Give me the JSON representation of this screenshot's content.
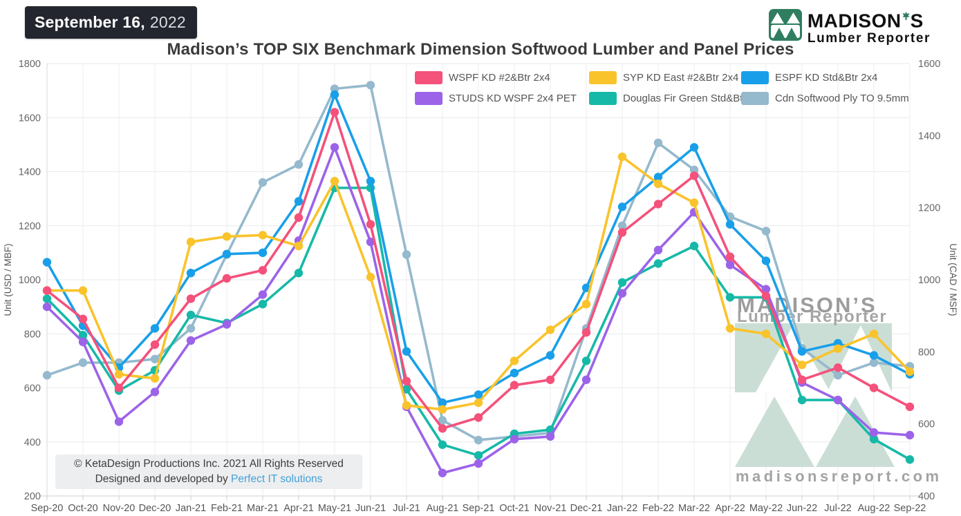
{
  "header": {
    "date_badge": {
      "date": "September 16,",
      "year": "2022"
    },
    "title": "Madison’s TOP SIX Benchmark Dimension Softwood Lumber and Panel Prices",
    "logo": {
      "name_part1": "MADISON",
      "name_part2": "S",
      "subtitle": "Lumber Reporter"
    }
  },
  "watermark": {
    "brand_line1_part1": "MADISON",
    "brand_line1_part2": "S",
    "brand_line2": "Lumber Reporter",
    "website": "madisonsreport.com"
  },
  "footer_note": {
    "line1": "© KetaDesign Productions Inc. 2021 All Rights Reserved",
    "line2_prefix": "Designed and developed by ",
    "line2_link": "Perfect IT solutions"
  },
  "chart_data": {
    "type": "line",
    "grid": true,
    "legend_position": "top-inside",
    "left_axis": {
      "title": "Unit (USD / MBF)",
      "min": 200,
      "max": 1800,
      "step": 200
    },
    "right_axis": {
      "title": "Unit (CAD / MSF)",
      "min": 400,
      "max": 1600,
      "step": 200
    },
    "categories": [
      "Sep-20",
      "Oct-20",
      "Nov-20",
      "Dec-20",
      "Jan-21",
      "Feb-21",
      "Mar-21",
      "Apr-21",
      "May-21",
      "Jun-21",
      "Jul-21",
      "Aug-21",
      "Sep-21",
      "Oct-21",
      "Nov-21",
      "Dec-21",
      "Jan-22",
      "Feb-22",
      "Mar-22",
      "Apr-22",
      "May-22",
      "Jun-22",
      "Jul-22",
      "Aug-22",
      "Sep-22"
    ],
    "series": [
      {
        "name": "WSPF KD #2&Btr 2x4",
        "color": "#F4517B",
        "axis": "left",
        "values": [
          960,
          855,
          600,
          760,
          930,
          1005,
          1035,
          1230,
          1620,
          1205,
          625,
          450,
          490,
          610,
          630,
          805,
          1175,
          1280,
          1385,
          1085,
          940,
          630,
          675,
          600,
          530
        ]
      },
      {
        "name": "SYP KD East #2&Btr 2x4",
        "color": "#F9C32B",
        "axis": "left",
        "values": [
          960,
          960,
          650,
          635,
          1140,
          1160,
          1165,
          1125,
          1365,
          1010,
          535,
          520,
          545,
          700,
          815,
          910,
          1455,
          1355,
          1285,
          820,
          800,
          685,
          745,
          800,
          660
        ]
      },
      {
        "name": "ESPF KD Std&Btr 2x4",
        "color": "#199FE9",
        "axis": "left",
        "values": [
          1065,
          830,
          675,
          820,
          1025,
          1095,
          1100,
          1290,
          1685,
          1365,
          735,
          545,
          575,
          655,
          720,
          970,
          1270,
          1380,
          1490,
          1205,
          1070,
          735,
          765,
          720,
          650
        ]
      },
      {
        "name": "STUDS KD WSPF 2x4 PET",
        "color": "#9C63E9",
        "axis": "left",
        "values": [
          900,
          770,
          475,
          585,
          775,
          835,
          945,
          1145,
          1490,
          1140,
          530,
          285,
          320,
          410,
          420,
          630,
          950,
          1110,
          1250,
          1055,
          965,
          620,
          555,
          435,
          425
        ]
      },
      {
        "name": "Douglas Fir Green Std&Btr 2x4",
        "color": "#16B9A7",
        "axis": "left",
        "values": [
          930,
          795,
          590,
          665,
          870,
          840,
          910,
          1025,
          1340,
          1340,
          595,
          390,
          350,
          430,
          445,
          700,
          990,
          1060,
          1125,
          935,
          935,
          555,
          555,
          410,
          335
        ]
      },
      {
        "name": "Cdn Softwood Ply TO 9.5mm",
        "color": "#95B9CD",
        "axis": "right",
        "values": [
          735,
          770,
          770,
          780,
          865,
          1070,
          1270,
          1320,
          1530,
          1540,
          1070,
          610,
          555,
          565,
          575,
          865,
          1150,
          1380,
          1305,
          1175,
          1135,
          810,
          735,
          770,
          760
        ]
      }
    ]
  }
}
